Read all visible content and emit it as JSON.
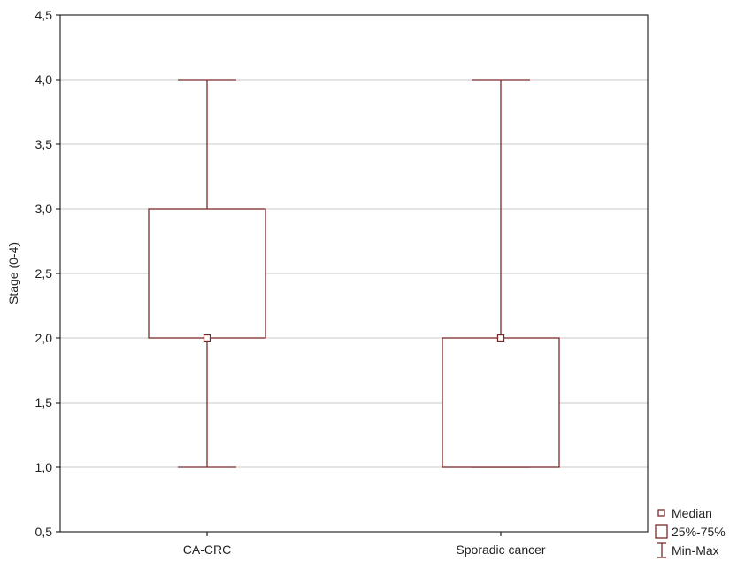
{
  "chart_data": {
    "type": "box",
    "title": "",
    "xlabel": "",
    "ylabel": "Stage (0-4)",
    "ylim": [
      0.5,
      4.5
    ],
    "yticks": [
      0.5,
      1.0,
      1.5,
      2.0,
      2.5,
      3.0,
      3.5,
      4.0,
      4.5
    ],
    "ytick_labels": [
      "0,5",
      "1,0",
      "1,5",
      "2,0",
      "2,5",
      "3,0",
      "3,5",
      "4,0",
      "4,5"
    ],
    "categories": [
      "CA-CRC",
      "Sporadic cancer"
    ],
    "groups": [
      {
        "category": "CA-CRC",
        "min": 1.0,
        "q1": 2.0,
        "median": 2.0,
        "q3": 3.0,
        "max": 4.0
      },
      {
        "category": "Sporadic cancer",
        "min": 1.0,
        "q1": 1.0,
        "median": 2.0,
        "q3": 2.0,
        "max": 4.0
      }
    ],
    "grid": true,
    "legend_position": "bottom-right",
    "legend": {
      "median": "Median",
      "box": "25%-75%",
      "whisker": "Min-Max"
    },
    "colors": {
      "box": "#7a2a2a",
      "grid": "#c8c8c8",
      "axis": "#000000"
    }
  }
}
